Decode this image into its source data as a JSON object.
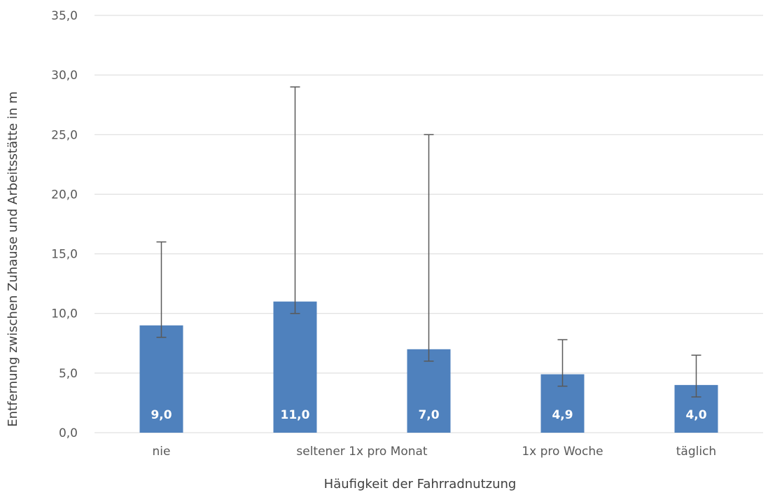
{
  "chart_data": {
    "type": "bar",
    "xlabel": "Häufigkeit der Fahrradnutzung",
    "ylabel": "Entfernung zwischen Zuhause und Arbeitsstätte in m",
    "ylim": [
      0,
      35
    ],
    "yticks": [
      "0,0",
      "5,0",
      "10,0",
      "15,0",
      "20,0",
      "25,0",
      "30,0",
      "35,0"
    ],
    "grid": true,
    "categories": [
      "nie",
      "",
      "seltener 1x pro Monat",
      "1x pro Woche",
      "täglich"
    ],
    "values": [
      9.0,
      11.0,
      7.0,
      4.9,
      4.0
    ],
    "value_labels": [
      "9,0",
      "11,0",
      "7,0",
      "4,9",
      "4,0"
    ],
    "error_low": [
      8.0,
      10.0,
      6.0,
      3.9,
      3.0
    ],
    "error_high": [
      16.0,
      29.0,
      25.0,
      7.8,
      6.5
    ],
    "bar_color": "#4f81bd",
    "gridline_color": "#d9d9d9",
    "errorbar_color": "#595959"
  }
}
